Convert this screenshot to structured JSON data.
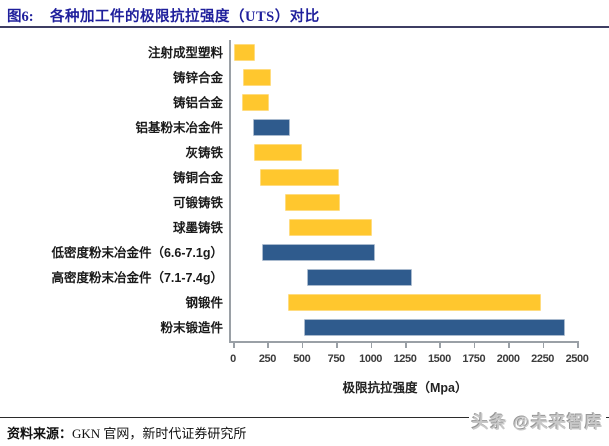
{
  "header": {
    "figure_label": "图6:",
    "title": "各种加工件的极限抗拉强度（UTS）对比"
  },
  "chart_data": {
    "type": "bar",
    "orientation": "horizontal-range",
    "title": "各种加工件的极限抗拉强度（UTS）对比",
    "xlabel": "极限抗拉强度（Mpa）",
    "xlim": [
      0,
      2500
    ],
    "xticks": [
      0,
      250,
      500,
      750,
      1000,
      1250,
      1500,
      1750,
      2000,
      2250,
      2500
    ],
    "grid": false,
    "legend": false,
    "colors": {
      "yellow": {
        "fill": "#FFC72E",
        "border": "#FFDC80"
      },
      "blue": {
        "fill": "#2F5B8D",
        "border": "#A9BACE"
      }
    },
    "bars": [
      {
        "label": "注射成型塑料",
        "min": 10,
        "max": 170,
        "color": "yellow"
      },
      {
        "label": "铸锌合金",
        "min": 70,
        "max": 280,
        "color": "yellow"
      },
      {
        "label": "铸铝合金",
        "min": 65,
        "max": 270,
        "color": "yellow"
      },
      {
        "label": "铝基粉末冶金件",
        "min": 145,
        "max": 425,
        "color": "blue"
      },
      {
        "label": "灰铸铁",
        "min": 150,
        "max": 510,
        "color": "yellow"
      },
      {
        "label": "铸铜合金",
        "min": 195,
        "max": 775,
        "color": "yellow"
      },
      {
        "label": "可锻铸铁",
        "min": 380,
        "max": 785,
        "color": "yellow"
      },
      {
        "label": "球墨铸铁",
        "min": 410,
        "max": 1020,
        "color": "yellow"
      },
      {
        "label": "低密度粉末冶金件（6.6-7.1g）",
        "min": 210,
        "max": 1040,
        "color": "blue"
      },
      {
        "label": "高密度粉末冶金件（7.1-7.4g）",
        "min": 535,
        "max": 1305,
        "color": "blue"
      },
      {
        "label": "钢锻件",
        "min": 400,
        "max": 2245,
        "color": "yellow"
      },
      {
        "label": "粉末锻造件",
        "min": 515,
        "max": 2420,
        "color": "blue"
      }
    ]
  },
  "footer": {
    "source_label": "资料来源：",
    "source_text": "GKN 官网，新时代证券研究所",
    "watermark": "头条 @未来智库"
  }
}
